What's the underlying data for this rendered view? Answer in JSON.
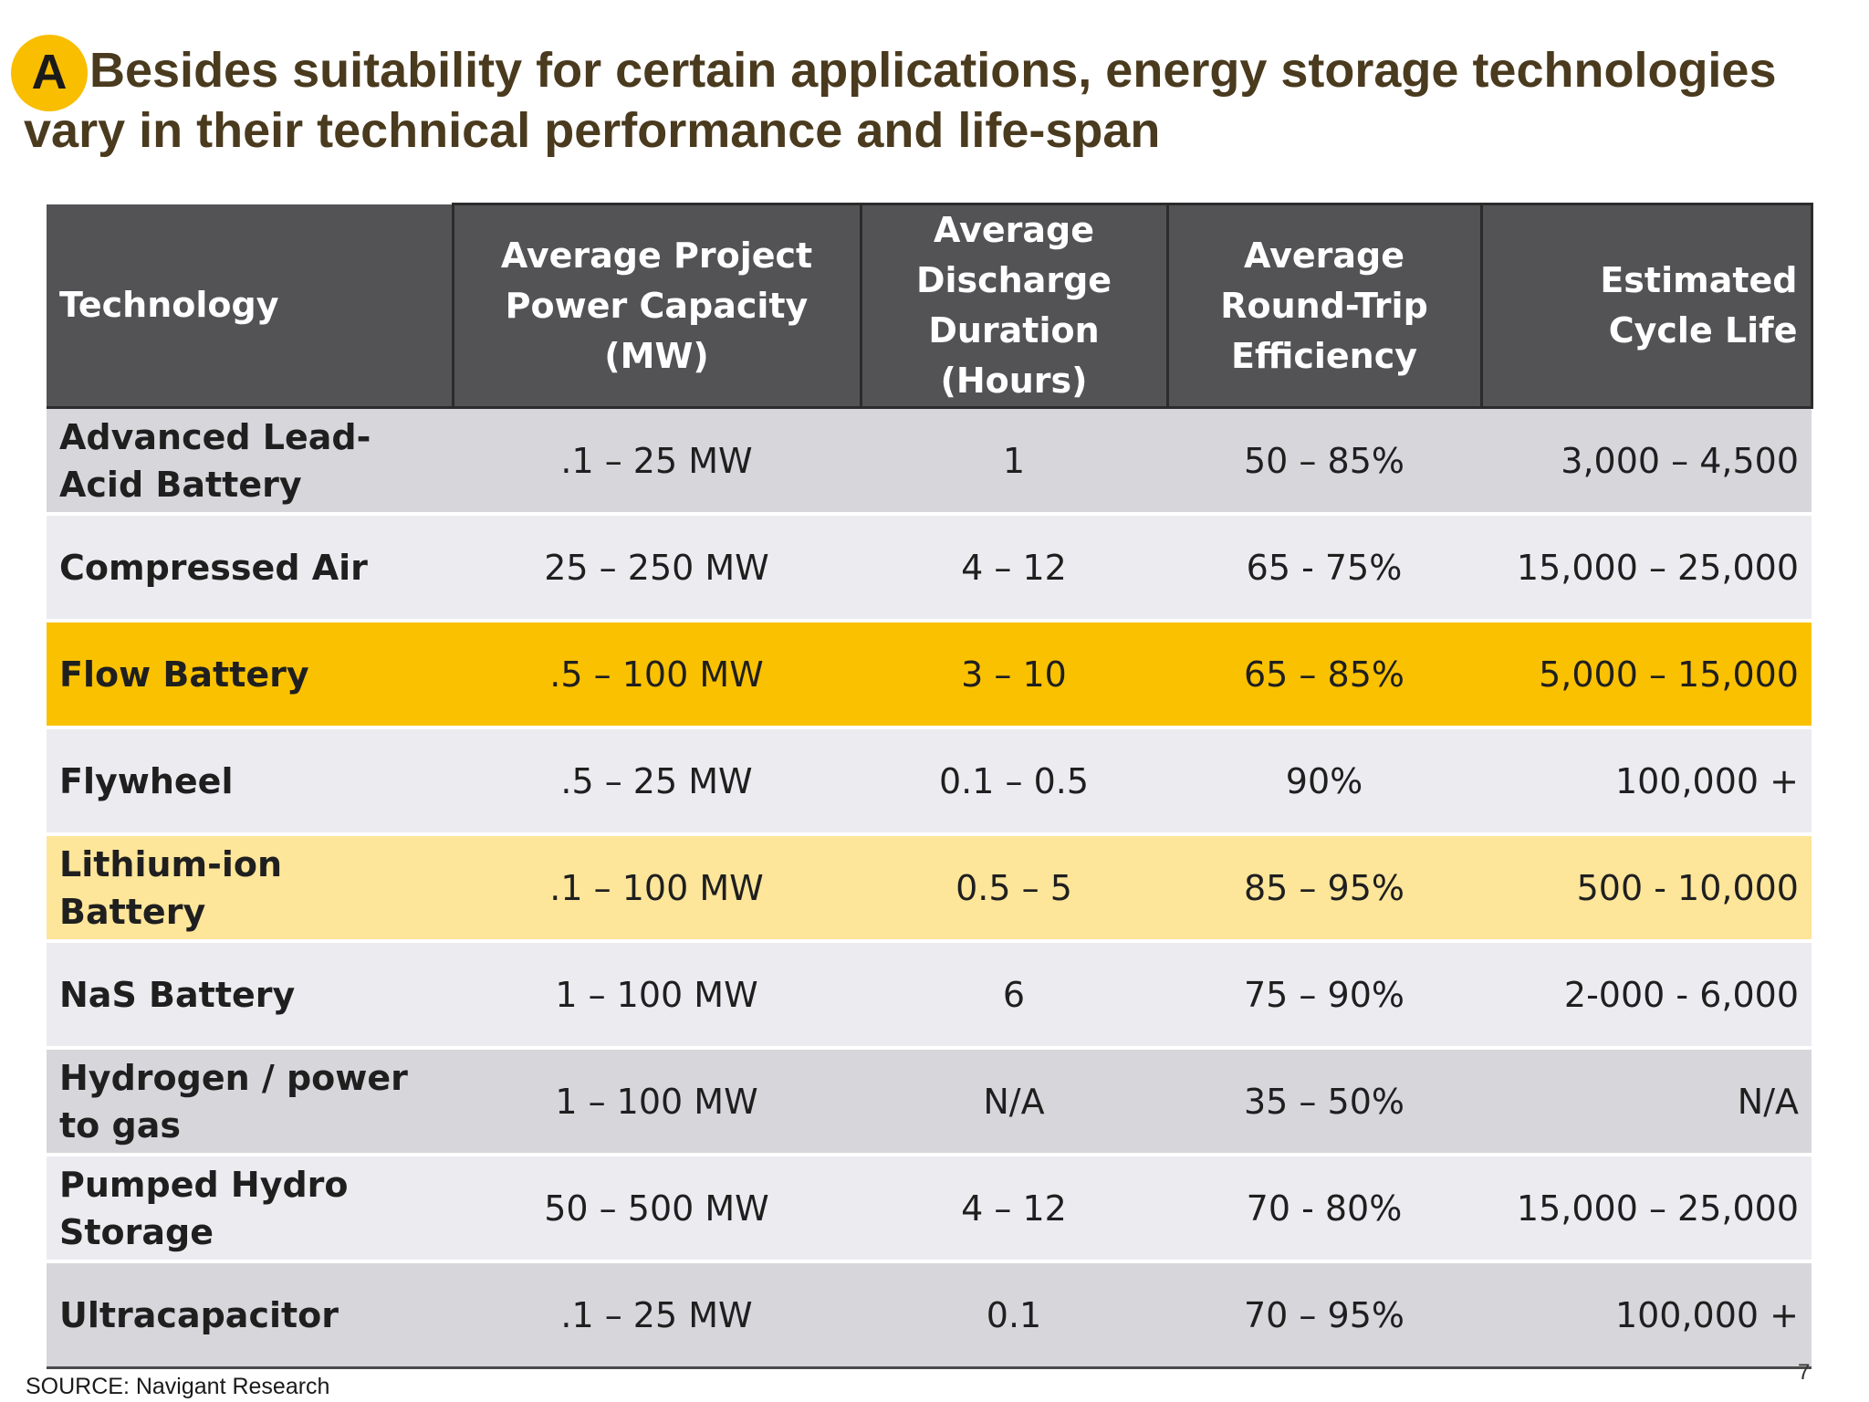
{
  "header": {
    "badge": "A",
    "title": "Besides suitability for certain applications, energy storage technologies vary in their technical performance and life-span"
  },
  "table": {
    "columns": [
      "Technology",
      "Average Project Power Capacity (MW)",
      "Average Discharge Duration (Hours)",
      "Average Round-Trip Efficiency",
      "Estimated Cycle Life"
    ],
    "rows": [
      {
        "technology": "Advanced Lead-Acid Battery",
        "capacity": ".1 – 25 MW",
        "duration": "1",
        "efficiency": "50 – 85%",
        "cycle_life": "3,000 – 4,500"
      },
      {
        "technology": "Compressed Air",
        "capacity": "25 – 250 MW",
        "duration": "4 – 12",
        "efficiency": "65 - 75%",
        "cycle_life": "15,000 – 25,000"
      },
      {
        "technology": "Flow Battery",
        "capacity": ".5 – 100 MW",
        "duration": "3 – 10",
        "efficiency": "65 – 85%",
        "cycle_life": "5,000 – 15,000"
      },
      {
        "technology": "Flywheel",
        "capacity": ".5 – 25 MW",
        "duration": "0.1 – 0.5",
        "efficiency": "90%",
        "cycle_life": "100,000 +"
      },
      {
        "technology": "Lithium-ion Battery",
        "capacity": ".1 – 100 MW",
        "duration": "0.5 – 5",
        "efficiency": "85 – 95%",
        "cycle_life": "500 - 10,000"
      },
      {
        "technology": "NaS Battery",
        "capacity": "1 – 100 MW",
        "duration": "6",
        "efficiency": "75 – 90%",
        "cycle_life": "2-000 - 6,000"
      },
      {
        "technology": "Hydrogen / power to gas",
        "capacity": "1 – 100 MW",
        "duration": "N/A",
        "efficiency": "35 – 50%",
        "cycle_life": "N/A"
      },
      {
        "technology": "Pumped Hydro Storage",
        "capacity": "50 – 500 MW",
        "duration": "4 – 12",
        "efficiency": "70 - 80%",
        "cycle_life": "15,000 – 25,000"
      },
      {
        "technology": "Ultracapacitor",
        "capacity": ".1 – 25 MW",
        "duration": "0.1",
        "efficiency": "70 – 95%",
        "cycle_life": "100,000 +"
      }
    ]
  },
  "footer": {
    "source": "SOURCE: Navigant Research",
    "page_number": "7"
  },
  "colors": {
    "header_bg": "#535356",
    "highlight_gold": "#fac100",
    "highlight_pale": "#fde59a",
    "row_dark": "#d7d6db",
    "row_light": "#ecebef",
    "title_text": "#4a3a1e",
    "badge": "#f9be00"
  }
}
